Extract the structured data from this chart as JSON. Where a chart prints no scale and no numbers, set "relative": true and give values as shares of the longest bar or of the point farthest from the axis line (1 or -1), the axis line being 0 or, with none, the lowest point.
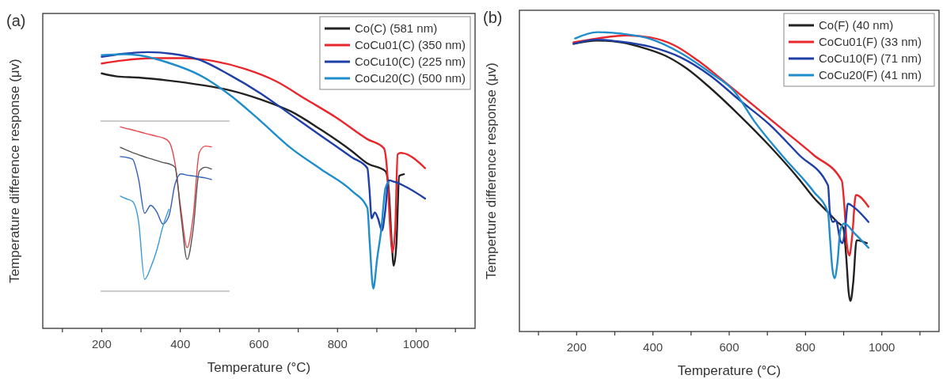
{
  "chart_data": [
    {
      "type": "line",
      "title": "(a)",
      "xlabel": "Temperature (°C)",
      "ylabel": "Temperature difference response (μv)",
      "relative": true,
      "legend": "top right",
      "grid": false,
      "xlim": [
        50,
        1150
      ],
      "xticks": [
        {
          "value": 100,
          "label": null
        },
        200,
        {
          "value": 300,
          "label": null
        },
        400,
        {
          "value": 500,
          "label": null
        },
        600,
        {
          "value": 700,
          "label": null
        },
        800,
        {
          "value": 900,
          "label": null
        },
        1000,
        {
          "value": 1100,
          "label": null
        }
      ],
      "series": [
        {
          "name": "Co(C) (581 nm)",
          "color": "#222222",
          "x": [
            200,
            239,
            293,
            371,
            449,
            526,
            604,
            682,
            759,
            837,
            876,
            922,
            930,
            938,
            943,
            950,
            957,
            969
          ],
          "values": [
            0.923,
            0.912,
            0.908,
            0.897,
            0.882,
            0.862,
            0.829,
            0.785,
            0.718,
            0.641,
            0.597,
            0.569,
            0.508,
            0.309,
            0.227,
            0.309,
            0.552,
            0.558
          ]
        },
        {
          "name": "CoCu01(C) (350 nm)",
          "color": "#e8262b",
          "x": [
            200,
            254,
            332,
            410,
            487,
            565,
            643,
            720,
            798,
            876,
            918,
            926,
            934,
            940,
            947,
            953,
            961,
            1023
          ],
          "values": [
            0.959,
            0.97,
            0.978,
            0.978,
            0.967,
            0.939,
            0.895,
            0.829,
            0.762,
            0.685,
            0.652,
            0.575,
            0.365,
            0.276,
            0.365,
            0.63,
            0.635,
            0.58
          ]
        },
        {
          "name": "CoCu10(C) (225 nm)",
          "color": "#1f3fa8",
          "x": [
            200,
            254,
            317,
            379,
            449,
            526,
            604,
            682,
            759,
            837,
            876,
            881,
            887,
            895,
            903,
            913,
            921,
            930,
            946,
            1023
          ],
          "values": [
            0.983,
            0.994,
            1.0,
            0.994,
            0.972,
            0.917,
            0.851,
            0.773,
            0.696,
            0.619,
            0.58,
            0.508,
            0.398,
            0.42,
            0.398,
            0.354,
            0.42,
            0.536,
            0.53,
            0.47
          ]
        },
        {
          "name": "CoCu20(C) (500 nm)",
          "color": "#1f8ccc",
          "x": [
            200,
            254,
            293,
            371,
            449,
            526,
            604,
            682,
            759,
            837,
            876,
            882,
            891,
            901,
            911,
            922,
            930
          ],
          "values": [
            0.989,
            0.992,
            0.989,
            0.961,
            0.917,
            0.845,
            0.751,
            0.652,
            0.575,
            0.497,
            0.436,
            0.309,
            0.144,
            0.254,
            0.354,
            0.508,
            0.53
          ]
        }
      ]
    },
    {
      "type": "line",
      "title": "(b)",
      "xlabel": "Temperature (°C)",
      "ylabel": "Temperture difference response (μv)",
      "relative": true,
      "legend": "top right",
      "grid": false,
      "xlim": [
        50,
        1150
      ],
      "xticks": [
        {
          "value": 100,
          "label": null
        },
        200,
        {
          "value": 300,
          "label": null
        },
        400,
        {
          "value": 500,
          "label": null
        },
        600,
        {
          "value": 700,
          "label": null
        },
        800,
        {
          "value": 900,
          "label": null
        },
        1000,
        {
          "value": 1100,
          "label": null
        }
      ],
      "series": [
        {
          "name": "Co(F) (40 nm)",
          "color": "#222222",
          "x": [
            192,
            254,
            317,
            379,
            433,
            487,
            550,
            627,
            705,
            783,
            821,
            860,
            883,
            899,
            907,
            913,
            918,
            925,
            934,
            961
          ],
          "values": [
            0.961,
            0.972,
            0.966,
            0.946,
            0.921,
            0.88,
            0.814,
            0.722,
            0.621,
            0.509,
            0.448,
            0.397,
            0.366,
            0.346,
            0.244,
            0.132,
            0.102,
            0.163,
            0.305,
            0.295
          ]
        },
        {
          "name": "CoCu01(F) (33 nm)",
          "color": "#e8262b",
          "x": [
            192,
            254,
            332,
            394,
            456,
            518,
            588,
            666,
            744,
            821,
            895,
            903,
            908,
            915,
            922,
            932,
            965
          ],
          "values": [
            0.966,
            0.979,
            0.989,
            0.982,
            0.956,
            0.905,
            0.834,
            0.753,
            0.671,
            0.59,
            0.504,
            0.397,
            0.295,
            0.254,
            0.315,
            0.456,
            0.417
          ]
        },
        {
          "name": "CoCu10(F) (71 nm)",
          "color": "#1f3fa8",
          "x": [
            192,
            254,
            317,
            394,
            472,
            550,
            627,
            705,
            783,
            859,
            864,
            872,
            880,
            891,
            897,
            904,
            911,
            930,
            965
          ],
          "values": [
            0.961,
            0.975,
            0.968,
            0.951,
            0.916,
            0.855,
            0.773,
            0.692,
            0.59,
            0.488,
            0.397,
            0.366,
            0.371,
            0.305,
            0.295,
            0.346,
            0.427,
            0.412,
            0.366
          ]
        },
        {
          "name": "CoCu20(F) (41 nm)",
          "color": "#1f8ccc",
          "x": [
            196,
            254,
            317,
            394,
            472,
            550,
            612,
            666,
            744,
            821,
            859,
            864,
            870,
            876,
            884,
            891,
            901,
            930,
            965
          ],
          "values": [
            0.979,
            1.0,
            0.995,
            0.977,
            0.931,
            0.865,
            0.804,
            0.702,
            0.58,
            0.468,
            0.397,
            0.315,
            0.214,
            0.178,
            0.234,
            0.336,
            0.361,
            0.326,
            0.28
          ]
        }
      ]
    },
    {
      "type": "line",
      "relative": true,
      "categories": [
        null,
        null,
        null,
        null,
        null,
        null,
        null,
        null,
        null,
        null,
        null,
        null,
        null,
        null,
        null,
        null
      ],
      "series": [
        {
          "color": "#e8474b",
          "values": [
            1.0,
            0.99,
            0.981,
            0.971,
            0.961,
            0.952,
            0.942,
            0.933,
            0.91,
            0.778,
            0.49,
            0.265,
            0.457,
            0.843,
            0.883,
            0.878
          ]
        },
        {
          "color": "#555555",
          "values": [
            0.875,
            0.859,
            0.843,
            0.83,
            0.817,
            0.806,
            0.795,
            0.783,
            0.775,
            0.754,
            0.457,
            0.193,
            0.377,
            0.73,
            0.754,
            0.743
          ]
        },
        {
          "color": "#2f5fb8",
          "values": [
            0.819,
            0.814,
            0.803,
            0.682,
            0.474,
            0.522,
            0.482,
            0.409,
            0.457,
            0.65,
            0.714,
            0.706,
            0.701,
            0.695,
            0.689,
            0.679
          ]
        },
        {
          "color": "#3a9ad6",
          "values": [
            0.578,
            0.562,
            0.546,
            0.425,
            0.072,
            0.144,
            0.249,
            0.393,
            0.498,
            null,
            null,
            null,
            null,
            null,
            null,
            null
          ]
        }
      ]
    }
  ]
}
